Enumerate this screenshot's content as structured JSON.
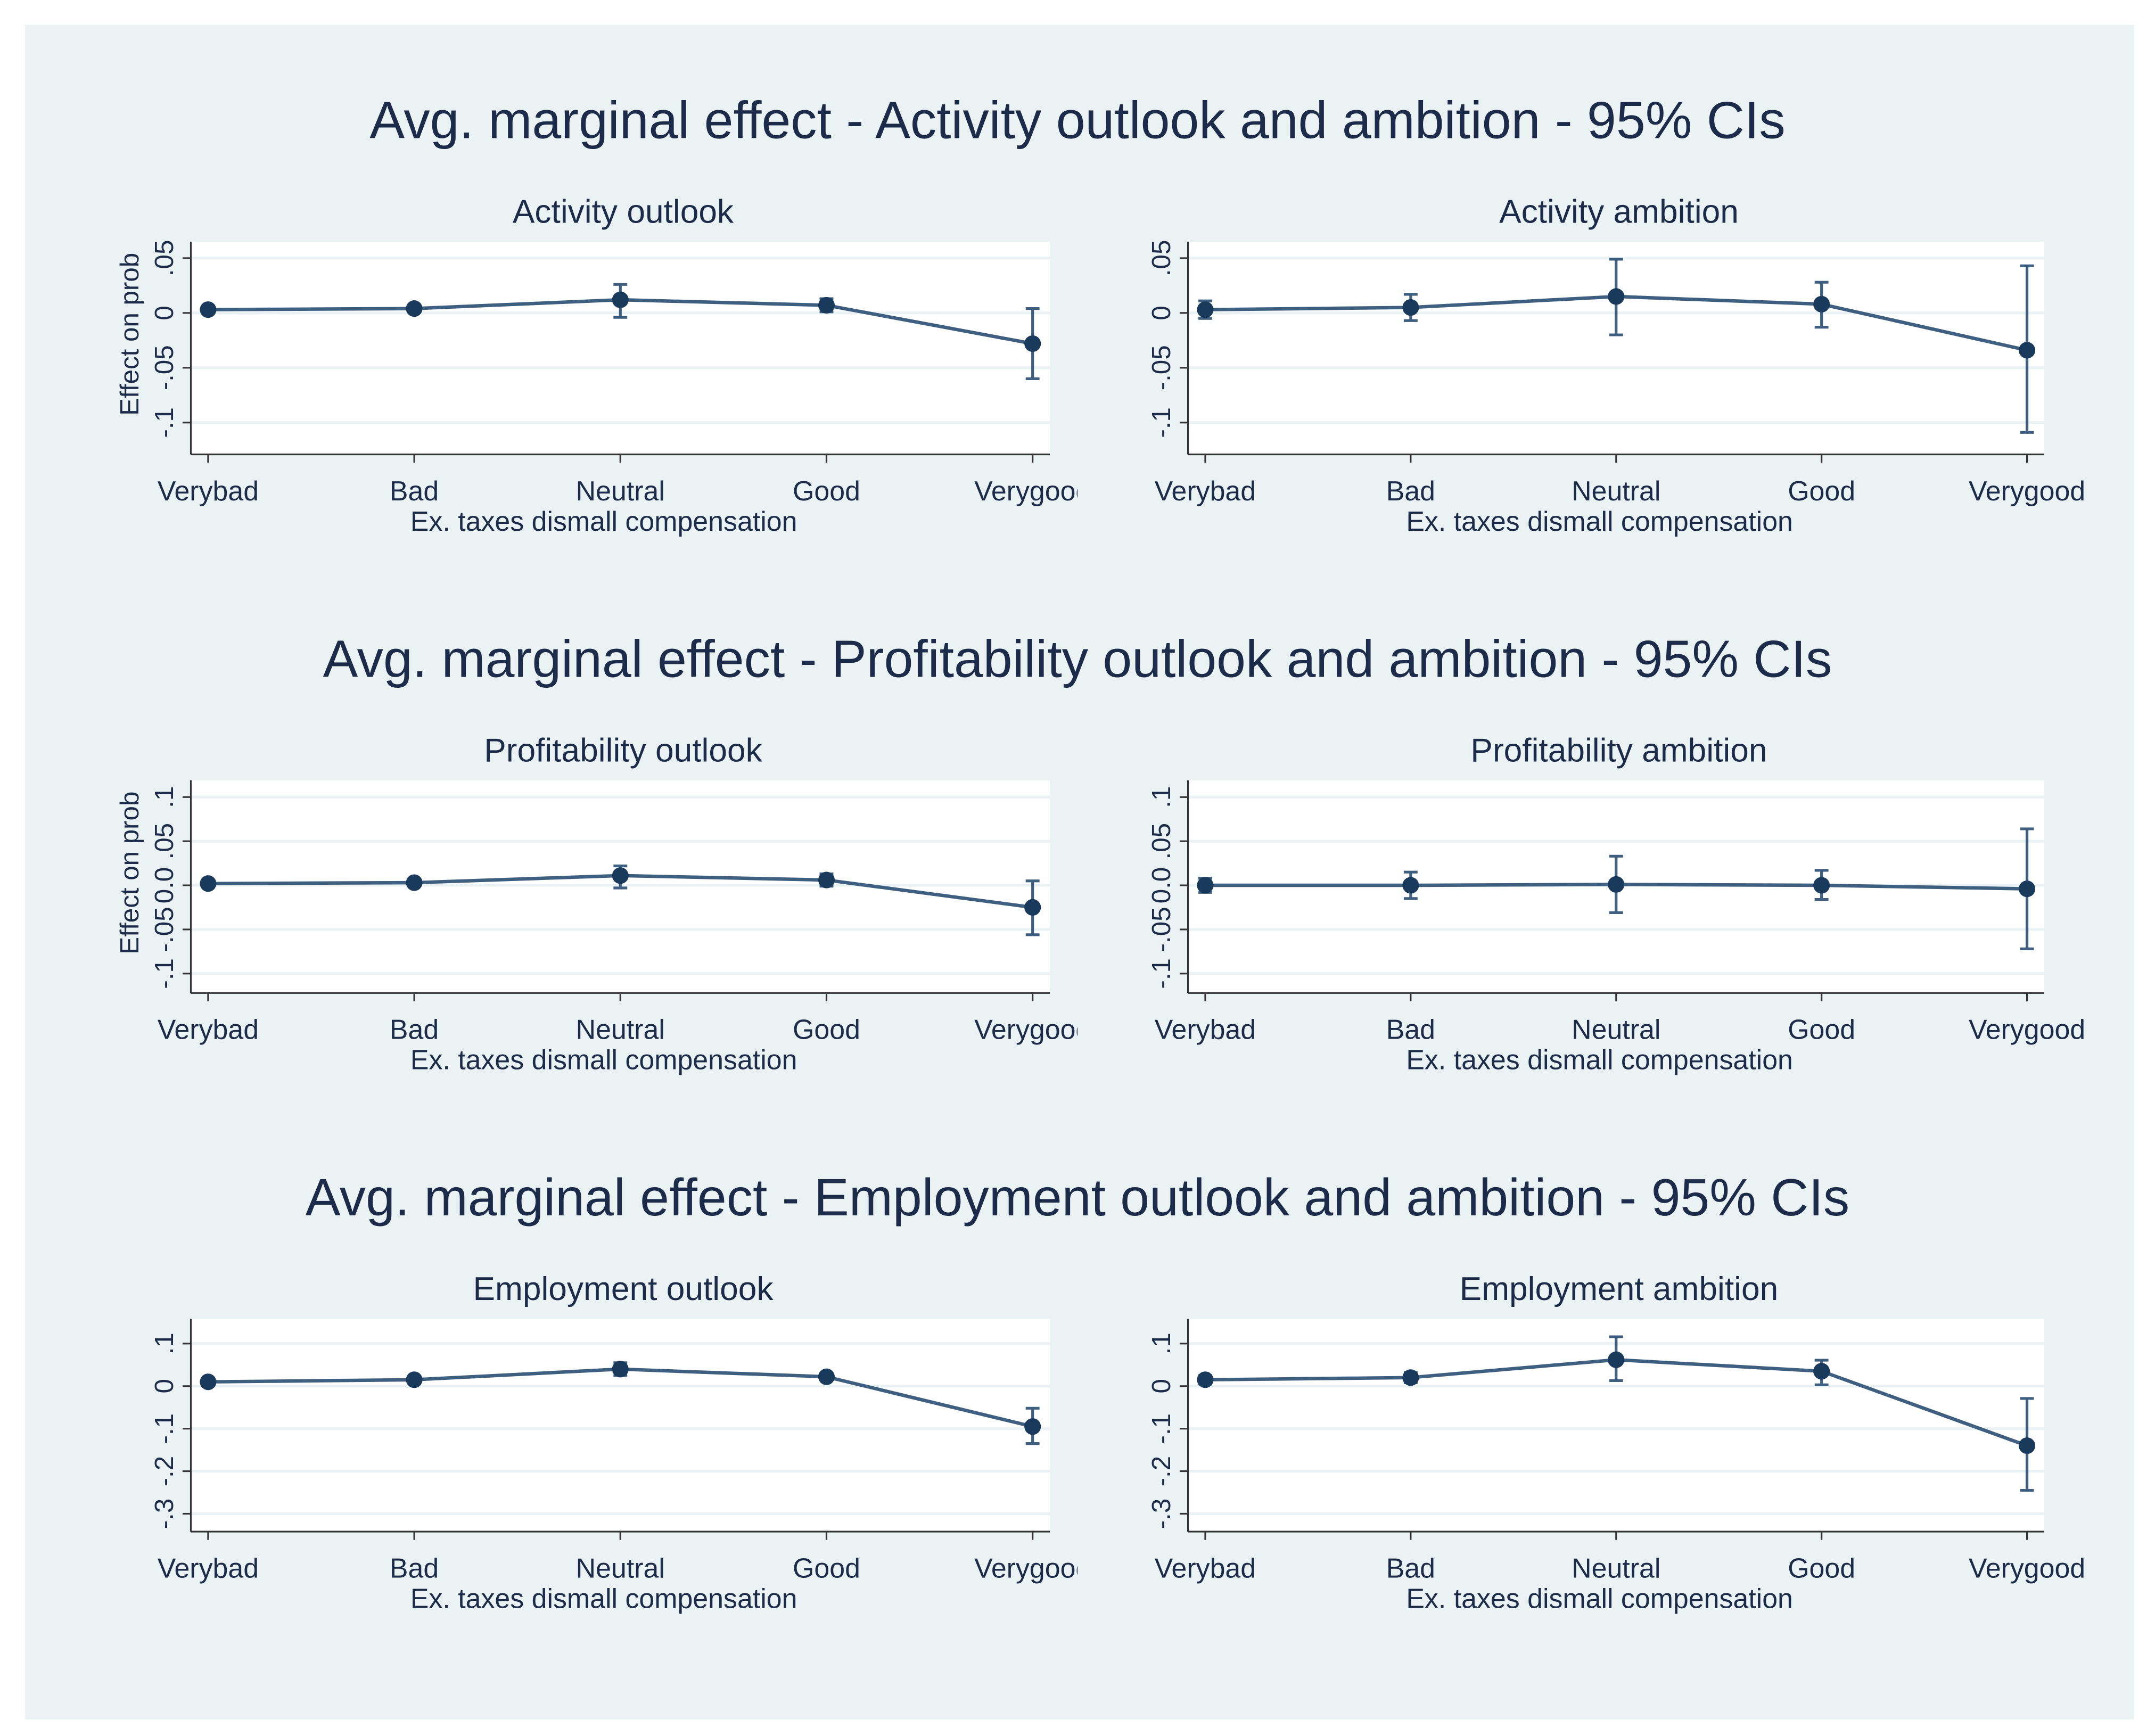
{
  "chart_data": [
    {
      "type": "errorbar",
      "title": "Avg. marginal effect - Activity outlook and ambition - 95% CIs",
      "panels": [
        {
          "type": "errorbar",
          "title": "Activity outlook",
          "ylabel": "Effect on prob",
          "xlabel": "Ex. taxes dismall compensation",
          "categories": [
            "Verybad",
            "Bad",
            "Neutral",
            "Good",
            "Verygood"
          ],
          "values": [
            0.003,
            0.004,
            0.012,
            0.007,
            -0.028
          ],
          "ci_lower": [
            0.001,
            0.002,
            -0.004,
            0.001,
            -0.06
          ],
          "ci_upper": [
            0.005,
            0.006,
            0.026,
            0.013,
            0.004
          ],
          "ylim": [
            -0.129,
            0.065
          ],
          "yticks": [
            {
              "value": -0.1,
              "label": "-.1"
            },
            {
              "value": -0.05,
              "label": "-.05"
            },
            0,
            {
              "value": 0.05,
              "label": ".05"
            }
          ]
        },
        {
          "type": "errorbar",
          "title": "Activity ambition",
          "xlabel": "Ex. taxes dismall compensation",
          "categories": [
            "Verybad",
            "Bad",
            "Neutral",
            "Good",
            "Verygood"
          ],
          "values": [
            0.003,
            0.005,
            0.015,
            0.008,
            -0.034
          ],
          "ci_lower": [
            -0.005,
            -0.007,
            -0.02,
            -0.013,
            -0.109
          ],
          "ci_upper": [
            0.011,
            0.017,
            0.049,
            0.028,
            0.043
          ],
          "ylim": [
            -0.129,
            0.065
          ],
          "yticks": [
            {
              "value": -0.1,
              "label": "-.1"
            },
            {
              "value": -0.05,
              "label": "-.05"
            },
            0,
            {
              "value": 0.05,
              "label": ".05"
            }
          ]
        }
      ]
    },
    {
      "type": "errorbar",
      "title": "Avg. marginal effect - Profitability outlook and ambition - 95% CIs",
      "panels": [
        {
          "type": "errorbar",
          "title": "Profitability outlook",
          "ylabel": "Effect on prob",
          "xlabel": "Ex. taxes dismall compensation",
          "categories": [
            "Verybad",
            "Bad",
            "Neutral",
            "Good",
            "Verygood"
          ],
          "values": [
            0.002,
            0.003,
            0.011,
            0.006,
            -0.025
          ],
          "ci_lower": [
            0.0,
            0.001,
            -0.003,
            -0.001,
            -0.056
          ],
          "ci_upper": [
            0.004,
            0.005,
            0.022,
            0.013,
            0.005
          ],
          "ylim": [
            -0.122,
            0.119
          ],
          "yticks": [
            {
              "value": -0.1,
              "label": "-.1"
            },
            {
              "value": -0.05,
              "label": "-.05"
            },
            {
              "value": 0,
              "label": "0.0"
            },
            {
              "value": 0.05,
              "label": ".05"
            },
            {
              "value": 0.1,
              "label": ".1"
            }
          ]
        },
        {
          "type": "errorbar",
          "title": "Profitability ambition",
          "xlabel": "Ex. taxes dismall compensation",
          "categories": [
            "Verybad",
            "Bad",
            "Neutral",
            "Good",
            "Verygood"
          ],
          "values": [
            0.0,
            0.0,
            0.001,
            0.0,
            -0.004
          ],
          "ci_lower": [
            -0.008,
            -0.015,
            -0.031,
            -0.016,
            -0.072
          ],
          "ci_upper": [
            0.008,
            0.015,
            0.033,
            0.017,
            0.064
          ],
          "ylim": [
            -0.122,
            0.119
          ],
          "yticks": [
            {
              "value": -0.1,
              "label": "-.1"
            },
            {
              "value": -0.05,
              "label": "-.05"
            },
            {
              "value": 0,
              "label": "0.0"
            },
            {
              "value": 0.05,
              "label": ".05"
            },
            {
              "value": 0.1,
              "label": ".1"
            }
          ]
        }
      ]
    },
    {
      "type": "errorbar",
      "title": "Avg. marginal effect - Employment outlook and ambition - 95% CIs",
      "panels": [
        {
          "type": "errorbar",
          "title": "Employment outlook",
          "xlabel": "Ex. taxes dismall compensation",
          "categories": [
            "Verybad",
            "Bad",
            "Neutral",
            "Good",
            "Verygood"
          ],
          "values": [
            0.01,
            0.015,
            0.04,
            0.022,
            -0.095
          ],
          "ci_lower": [
            0.004,
            0.009,
            0.025,
            0.015,
            -0.135
          ],
          "ci_upper": [
            0.016,
            0.021,
            0.055,
            0.03,
            -0.052
          ],
          "ylim": [
            -0.342,
            0.158
          ],
          "yticks": [
            {
              "value": -0.3,
              "label": "-.3"
            },
            {
              "value": -0.2,
              "label": "-.2"
            },
            {
              "value": -0.1,
              "label": "-.1"
            },
            0,
            {
              "value": 0.1,
              "label": ".1"
            }
          ]
        },
        {
          "type": "errorbar",
          "title": "Employment ambition",
          "xlabel": "Ex. taxes dismall compensation",
          "categories": [
            "Verybad",
            "Bad",
            "Neutral",
            "Good",
            "Verygood"
          ],
          "values": [
            0.015,
            0.02,
            0.062,
            0.035,
            -0.14
          ],
          "ci_lower": [
            0.005,
            0.008,
            0.013,
            0.003,
            -0.245
          ],
          "ci_upper": [
            0.025,
            0.032,
            0.116,
            0.061,
            -0.029
          ],
          "ylim": [
            -0.342,
            0.158
          ],
          "yticks": [
            {
              "value": -0.3,
              "label": "-.3"
            },
            {
              "value": -0.2,
              "label": "-.2"
            },
            {
              "value": -0.1,
              "label": "-.1"
            },
            0,
            {
              "value": 0.1,
              "label": ".1"
            }
          ]
        }
      ]
    }
  ]
}
